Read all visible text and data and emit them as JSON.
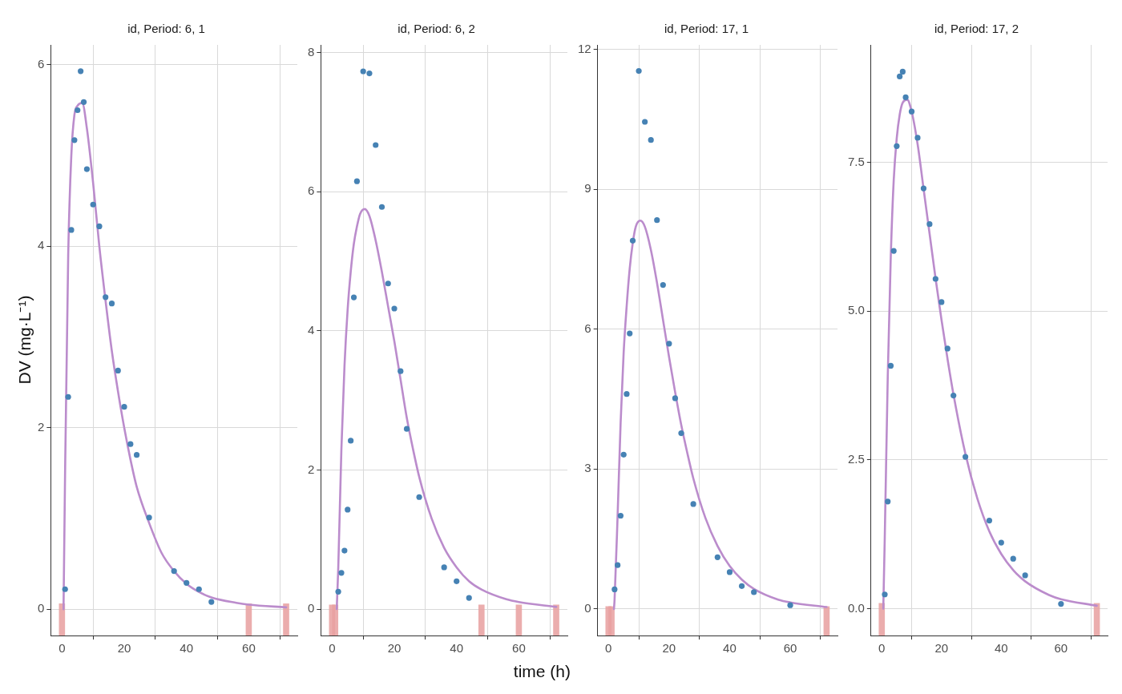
{
  "chart_data": [
    {
      "type": "scatter",
      "title": "id, Period: 6, 1",
      "ylabel": "DV (mg·L⁻¹)",
      "grid": true,
      "xlim": [
        -3.6,
        75.6
      ],
      "xticks": [
        0,
        20,
        40,
        60
      ],
      "ylim": [
        -0.29,
        6.22
      ],
      "yticks": [
        0,
        2,
        4,
        6
      ],
      "series": [
        {
          "marker": "circle",
          "color": "#4682b4",
          "x": [
            1,
            2,
            3,
            4,
            5,
            6,
            7,
            8,
            10,
            12,
            14,
            16,
            18,
            20,
            22,
            24,
            28,
            36,
            40,
            44,
            48
          ],
          "values": [
            0.22,
            2.34,
            4.18,
            5.17,
            5.5,
            5.93,
            5.59,
            4.85,
            4.46,
            4.22,
            3.44,
            3.37,
            2.63,
            2.23,
            1.82,
            1.7,
            1.01,
            0.42,
            0.29,
            0.22,
            0.08
          ]
        },
        {
          "type": "line",
          "color": "#bb8ccc",
          "x": [
            0.5,
            1,
            2,
            3,
            4,
            5,
            6.5,
            8,
            10,
            12,
            14,
            16,
            18,
            20,
            22,
            24,
            28,
            32,
            36,
            40,
            44,
            48,
            56,
            60,
            72
          ],
          "values": [
            0,
            1.5,
            3.9,
            5.0,
            5.45,
            5.55,
            5.58,
            5.3,
            4.7,
            4.0,
            3.4,
            2.85,
            2.4,
            2.0,
            1.65,
            1.35,
            0.95,
            0.62,
            0.42,
            0.28,
            0.19,
            0.13,
            0.07,
            0.05,
            0.02
          ]
        },
        {
          "type": "bar",
          "color": "#e8a0a0",
          "x": [
            0,
            60,
            72
          ],
          "base": [
            -0.29,
            -0.29,
            -0.29
          ],
          "values": [
            0.35,
            0.35,
            0.35
          ]
        }
      ]
    },
    {
      "type": "scatter",
      "title": "id, Period: 6, 2",
      "xlabel": "time (h)",
      "grid": true,
      "xlim": [
        -3.6,
        75.6
      ],
      "xticks": [
        0,
        20,
        40,
        60
      ],
      "ylim": [
        -0.38,
        8.11
      ],
      "yticks": [
        0,
        2,
        4,
        6,
        8
      ],
      "series": [
        {
          "marker": "circle",
          "color": "#4682b4",
          "x": [
            2,
            3,
            4,
            5,
            6,
            7,
            8,
            10,
            12,
            14,
            16,
            18,
            20,
            22,
            24,
            28,
            36,
            40,
            44
          ],
          "values": [
            0.25,
            0.52,
            0.84,
            1.43,
            2.42,
            4.48,
            6.15,
            7.73,
            7.7,
            6.67,
            5.78,
            4.68,
            4.32,
            3.42,
            2.59,
            1.61,
            0.6,
            0.4,
            0.16
          ]
        },
        {
          "type": "line",
          "color": "#bb8ccc",
          "x": [
            1.5,
            2,
            3,
            4,
            5,
            6,
            7,
            8,
            9,
            10.5,
            12,
            14,
            16,
            18,
            20,
            22,
            24,
            26,
            28,
            32,
            36,
            40,
            44,
            48,
            56,
            60,
            72
          ],
          "values": [
            0,
            0.6,
            2.3,
            3.5,
            4.3,
            4.85,
            5.25,
            5.5,
            5.68,
            5.75,
            5.65,
            5.3,
            4.85,
            4.35,
            3.85,
            3.3,
            2.75,
            2.3,
            1.9,
            1.3,
            0.88,
            0.6,
            0.4,
            0.28,
            0.14,
            0.1,
            0.03
          ]
        },
        {
          "type": "bar",
          "color": "#e8a0a0",
          "x": [
            0,
            1,
            48,
            60,
            72
          ],
          "base": [
            -0.38,
            -0.38,
            -0.38,
            -0.38,
            -0.38
          ],
          "values": [
            0.44,
            0.44,
            0.44,
            0.44,
            0.44
          ]
        }
      ]
    },
    {
      "type": "scatter",
      "title": "id, Period: 17, 1",
      "grid": true,
      "xlim": [
        -3.6,
        75.6
      ],
      "xticks": [
        0,
        20,
        40,
        60
      ],
      "ylim": [
        -0.57,
        12.1
      ],
      "yticks": [
        0,
        3,
        6,
        9,
        12
      ],
      "series": [
        {
          "marker": "circle",
          "color": "#4682b4",
          "x": [
            2,
            3,
            4,
            5,
            6,
            7,
            8,
            10,
            12,
            14,
            16,
            18,
            20,
            22,
            24,
            28,
            36,
            40,
            44,
            48,
            60
          ],
          "values": [
            0.42,
            0.94,
            2.0,
            3.31,
            4.61,
            5.91,
            7.9,
            11.54,
            10.45,
            10.06,
            8.34,
            6.95,
            5.69,
            4.52,
            3.77,
            2.25,
            1.11,
            0.79,
            0.49,
            0.36,
            0.08
          ]
        },
        {
          "type": "line",
          "color": "#bb8ccc",
          "x": [
            1.8,
            2,
            3,
            4,
            5,
            6,
            7,
            8,
            9,
            10.5,
            12,
            14,
            16,
            18,
            20,
            22,
            24,
            26,
            28,
            32,
            36,
            40,
            44,
            48,
            56,
            60,
            72
          ],
          "values": [
            0,
            0.2,
            2.0,
            4.0,
            5.5,
            6.5,
            7.3,
            7.85,
            8.2,
            8.33,
            8.2,
            7.7,
            7.0,
            6.2,
            5.4,
            4.65,
            3.95,
            3.35,
            2.8,
            1.95,
            1.35,
            0.92,
            0.63,
            0.43,
            0.2,
            0.14,
            0.04
          ]
        },
        {
          "type": "bar",
          "color": "#e8a0a0",
          "x": [
            0,
            1,
            72
          ],
          "base": [
            -0.57,
            -0.57,
            -0.57
          ],
          "values": [
            0.62,
            0.62,
            0.62
          ]
        }
      ]
    },
    {
      "type": "scatter",
      "title": "id, Period: 17, 2",
      "grid": true,
      "xlim": [
        -3.6,
        75.6
      ],
      "xticks": [
        0,
        20,
        40,
        60
      ],
      "ylim": [
        -0.45,
        9.47
      ],
      "yticks": [
        {
          "value": 0,
          "label": "0.0"
        },
        {
          "value": 2.5,
          "label": "2.5"
        },
        {
          "value": 5,
          "label": "5.0"
        },
        {
          "value": 7.5,
          "label": "7.5"
        }
      ],
      "series": [
        {
          "marker": "circle",
          "color": "#4682b4",
          "x": [
            1,
            2,
            3,
            4,
            5,
            6,
            7,
            8,
            10,
            12,
            14,
            16,
            18,
            20,
            22,
            24,
            28,
            36,
            40,
            44,
            48,
            60
          ],
          "values": [
            0.24,
            1.8,
            4.08,
            6.01,
            7.77,
            8.94,
            9.02,
            8.59,
            8.35,
            7.91,
            7.06,
            6.46,
            5.54,
            5.15,
            4.37,
            3.58,
            2.55,
            1.48,
            1.11,
            0.84,
            0.56,
            0.08
          ]
        },
        {
          "type": "line",
          "color": "#bb8ccc",
          "x": [
            0.5,
            1,
            2,
            3,
            4,
            5,
            6,
            7,
            8.5,
            10,
            12,
            14,
            16,
            18,
            20,
            22,
            24,
            28,
            32,
            36,
            40,
            44,
            48,
            56,
            60,
            72
          ],
          "values": [
            0,
            1.2,
            3.9,
            5.9,
            7.2,
            7.9,
            8.3,
            8.5,
            8.55,
            8.35,
            7.8,
            7.05,
            6.3,
            5.55,
            4.85,
            4.2,
            3.6,
            2.6,
            1.85,
            1.3,
            0.92,
            0.65,
            0.46,
            0.23,
            0.16,
            0.05
          ]
        },
        {
          "type": "bar",
          "color": "#e8a0a0",
          "x": [
            0,
            72
          ],
          "base": [
            -0.45,
            -0.45
          ],
          "values": [
            0.54,
            0.54
          ]
        }
      ]
    }
  ]
}
